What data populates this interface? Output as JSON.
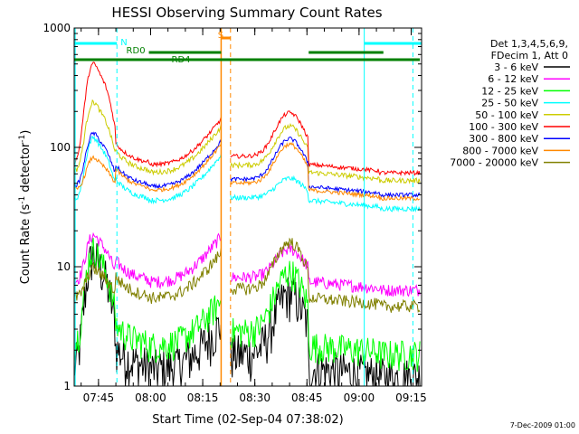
{
  "chart_data": {
    "type": "line",
    "title": "HESSI Observing Summary Count Rates",
    "xlabel": "Start Time (02-Sep-04 07:38:02)",
    "ylabel_main": "Count Rate (s",
    "ylabel_sup": "-1",
    "ylabel_tail": " detector",
    "ylabel_end": ")",
    "footer_date": "7-Dec-2009 01:00",
    "y_scale": "log",
    "xlim": [
      0,
      100
    ],
    "ylim": [
      1,
      1000
    ],
    "x_ticks": [
      {
        "label": "07:45",
        "t": 7
      },
      {
        "label": "08:00",
        "t": 22
      },
      {
        "label": "08:15",
        "t": 37
      },
      {
        "label": "08:30",
        "t": 52
      },
      {
        "label": "08:45",
        "t": 67
      },
      {
        "label": "09:00",
        "t": 82
      },
      {
        "label": "09:15",
        "t": 97
      }
    ],
    "y_ticks": [
      {
        "label": "1",
        "value": 1
      },
      {
        "label": "10",
        "value": 10
      },
      {
        "label": "100",
        "value": 100
      },
      {
        "label": "1000",
        "value": 1000
      }
    ],
    "legend": {
      "placement": "right",
      "header": [
        "Det 1,3,4,5,6,9,",
        "FDecim 1, Att 0"
      ]
    },
    "series": [
      {
        "name": "3 - 6 keV",
        "color": "#000000",
        "day": 1.4,
        "peak1": 16,
        "peak2": 6,
        "noise": 0.45
      },
      {
        "name": "6 - 12 keV",
        "color": "#ff00ff",
        "day": 7.5,
        "peak1": 22,
        "peak2": 14,
        "noise": 0.12
      },
      {
        "name": "12 - 25 keV",
        "color": "#00ff00",
        "day": 2.2,
        "peak1": 18,
        "peak2": 9,
        "noise": 0.3
      },
      {
        "name": "25 - 50 keV",
        "color": "#00ffff",
        "day": 36,
        "peak1": 150,
        "peak2": 55,
        "noise": 0.05
      },
      {
        "name": "50 - 100 keV",
        "color": "#cccc00",
        "day": 62,
        "peak1": 300,
        "peak2": 150,
        "noise": 0.05
      },
      {
        "name": "100 - 300 keV",
        "color": "#ff0000",
        "day": 72,
        "peak1": 650,
        "peak2": 195,
        "noise": 0.04
      },
      {
        "name": "300 - 800 keV",
        "color": "#0000ff",
        "day": 47,
        "peak1": 160,
        "peak2": 118,
        "noise": 0.04
      },
      {
        "name": "800 - 7000 keV",
        "color": "#ff8800",
        "day": 44,
        "peak1": 95,
        "peak2": 106,
        "noise": 0.04
      },
      {
        "name": "7000 - 20000 keV",
        "color": "#808000",
        "day": 5.5,
        "peak1": 11,
        "peak2": 16,
        "noise": 0.12
      }
    ],
    "flags": {
      "night_cyan": [
        {
          "label": "N",
          "start": 0,
          "end": 12.3
        },
        {
          "label": "",
          "start": 83.5,
          "end": 100
        }
      ],
      "rd0": [
        {
          "label": "RD0",
          "start": 21.5,
          "end": 42.3
        },
        {
          "label": "",
          "start": 67.5,
          "end": 89
        }
      ],
      "rd4": [
        {
          "label": "RD4",
          "start": 0,
          "end": 99.5
        }
      ],
      "saa": [
        {
          "label": "S",
          "start": 42.3,
          "end": 45
        }
      ]
    },
    "vlines_cyan_dashed": [
      12.3,
      97.5
    ],
    "vlines_cyan_solid": [
      0.3,
      83.5
    ],
    "vlines_orange_solid": [
      42.3
    ],
    "vlines_orange_dashed": [
      45
    ]
  }
}
